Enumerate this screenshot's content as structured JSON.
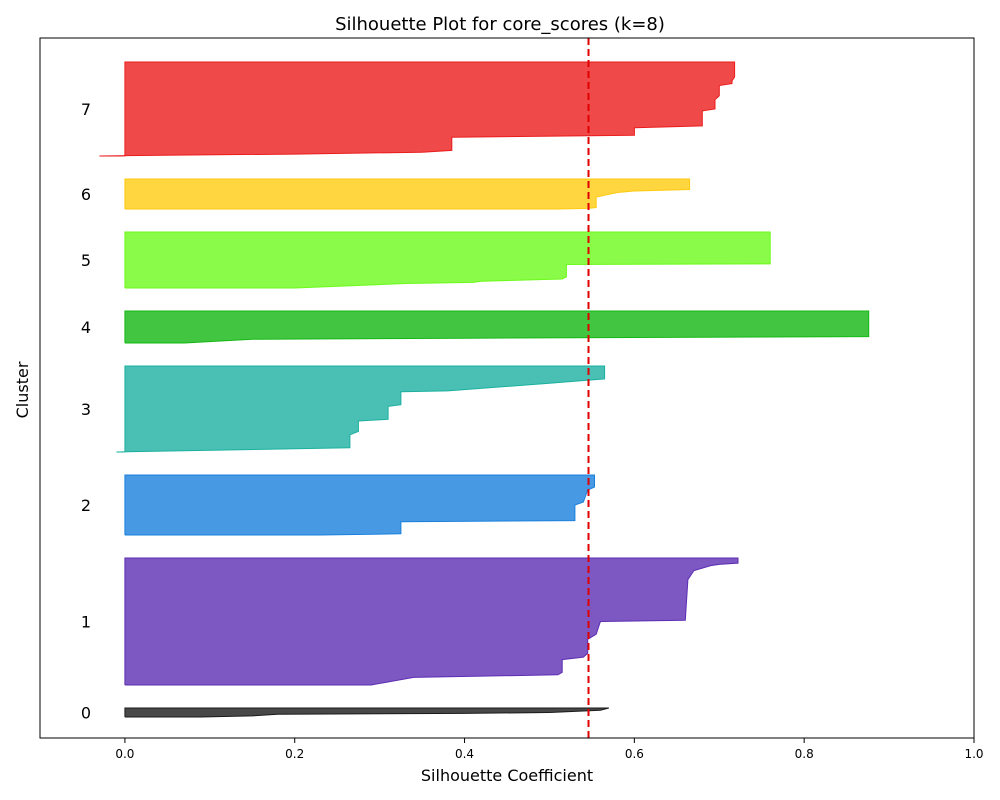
{
  "chart_data": {
    "type": "area",
    "title": "Silhouette Plot for core_scores (k=8)",
    "xlabel": "Silhouette Coefficient",
    "ylabel": "Cluster",
    "xlim": [
      -0.1,
      1.0
    ],
    "xticks": [
      "0.0",
      "0.2",
      "0.4",
      "0.6",
      "0.8",
      "1.0"
    ],
    "average_silhouette": 0.546,
    "average_line_color": "#e00000",
    "clusters": [
      {
        "label": "0",
        "color": "#1a1a1a",
        "profile": [
          [
            0.0,
            0.0
          ],
          [
            0.09,
            0.0
          ],
          [
            0.15,
            0.12
          ],
          [
            0.18,
            0.3
          ],
          [
            0.4,
            0.4
          ],
          [
            0.5,
            0.5
          ],
          [
            0.56,
            0.75
          ],
          [
            0.57,
            1.0
          ]
        ]
      },
      {
        "label": "1",
        "color": "#5c2db3",
        "profile": [
          [
            0.0,
            0.0
          ],
          [
            0.29,
            0.0
          ],
          [
            0.34,
            0.06
          ],
          [
            0.51,
            0.08
          ],
          [
            0.515,
            0.1
          ],
          [
            0.515,
            0.2
          ],
          [
            0.54,
            0.22
          ],
          [
            0.545,
            0.25
          ],
          [
            0.545,
            0.36
          ],
          [
            0.555,
            0.4
          ],
          [
            0.56,
            0.5
          ],
          [
            0.66,
            0.51
          ],
          [
            0.663,
            0.83
          ],
          [
            0.67,
            0.9
          ],
          [
            0.69,
            0.94
          ],
          [
            0.7,
            0.95
          ],
          [
            0.722,
            0.96
          ],
          [
            0.722,
            1.0
          ]
        ]
      },
      {
        "label": "2",
        "color": "#1a80dc",
        "profile": [
          [
            0.0,
            0.0
          ],
          [
            0.23,
            0.0
          ],
          [
            0.325,
            0.02
          ],
          [
            0.325,
            0.22
          ],
          [
            0.53,
            0.24
          ],
          [
            0.53,
            0.5
          ],
          [
            0.54,
            0.55
          ],
          [
            0.545,
            0.75
          ],
          [
            0.553,
            0.8
          ],
          [
            0.553,
            1.0
          ]
        ]
      },
      {
        "label": "3",
        "color": "#1bb0a0",
        "profile": [
          [
            -0.01,
            0.0
          ],
          [
            0.265,
            0.05
          ],
          [
            0.265,
            0.2
          ],
          [
            0.275,
            0.24
          ],
          [
            0.275,
            0.36
          ],
          [
            0.31,
            0.38
          ],
          [
            0.31,
            0.53
          ],
          [
            0.325,
            0.55
          ],
          [
            0.325,
            0.7
          ],
          [
            0.38,
            0.71
          ],
          [
            0.5,
            0.8
          ],
          [
            0.565,
            0.85
          ],
          [
            0.565,
            1.0
          ]
        ]
      },
      {
        "label": "4",
        "color": "#13b813",
        "profile": [
          [
            0.0,
            0.0
          ],
          [
            0.07,
            0.0
          ],
          [
            0.15,
            0.12
          ],
          [
            0.4,
            0.15
          ],
          [
            0.876,
            0.2
          ],
          [
            0.876,
            1.0
          ]
        ]
      },
      {
        "label": "5",
        "color": "#6bfa1a",
        "profile": [
          [
            0.0,
            0.0
          ],
          [
            0.2,
            0.0
          ],
          [
            0.33,
            0.08
          ],
          [
            0.41,
            0.1
          ],
          [
            0.42,
            0.12
          ],
          [
            0.515,
            0.16
          ],
          [
            0.52,
            0.2
          ],
          [
            0.52,
            0.42
          ],
          [
            0.76,
            0.43
          ],
          [
            0.76,
            1.0
          ]
        ]
      },
      {
        "label": "6",
        "color": "#ffca10",
        "profile": [
          [
            0.0,
            0.0
          ],
          [
            0.51,
            0.0
          ],
          [
            0.545,
            0.02
          ],
          [
            0.555,
            0.05
          ],
          [
            0.555,
            0.4
          ],
          [
            0.58,
            0.55
          ],
          [
            0.6,
            0.6
          ],
          [
            0.665,
            0.65
          ],
          [
            0.665,
            1.0
          ]
        ]
      },
      {
        "label": "7",
        "color": "#eb1c1c",
        "profile": [
          [
            -0.03,
            0.0
          ],
          [
            0.06,
            0.01
          ],
          [
            0.2,
            0.02
          ],
          [
            0.35,
            0.04
          ],
          [
            0.385,
            0.06
          ],
          [
            0.385,
            0.2
          ],
          [
            0.6,
            0.22
          ],
          [
            0.6,
            0.3
          ],
          [
            0.68,
            0.32
          ],
          [
            0.68,
            0.48
          ],
          [
            0.695,
            0.5
          ],
          [
            0.695,
            0.6
          ],
          [
            0.7,
            0.64
          ],
          [
            0.7,
            0.75
          ],
          [
            0.715,
            0.77
          ],
          [
            0.715,
            0.8
          ],
          [
            0.718,
            0.84
          ],
          [
            0.718,
            1.0
          ]
        ]
      }
    ],
    "grid": false
  }
}
